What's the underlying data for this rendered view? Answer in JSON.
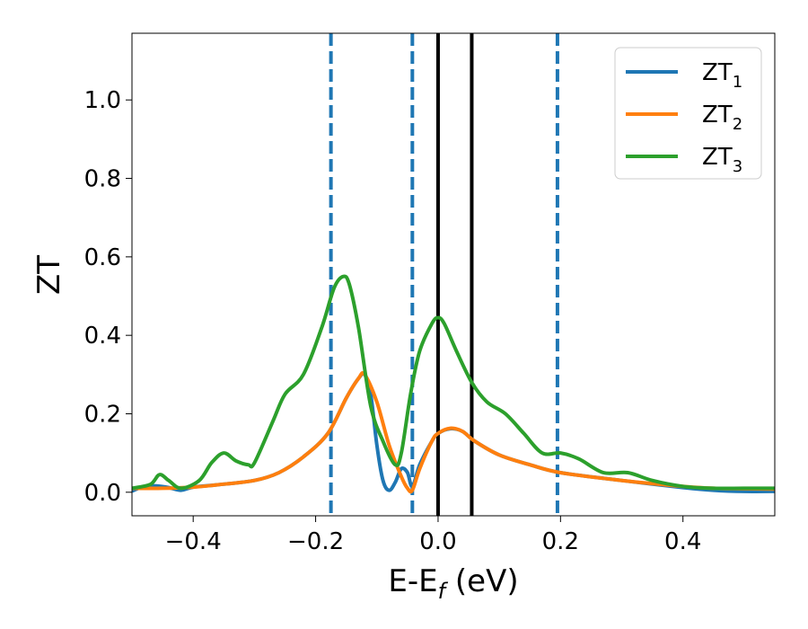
{
  "chart_data": {
    "type": "line",
    "xlabel_main": "E-E",
    "xlabel_sub": "f",
    "xlabel_unit": " (eV)",
    "ylabel": "ZT",
    "xlim": [
      -0.5,
      0.55
    ],
    "ylim": [
      -0.06,
      1.17
    ],
    "xticks": [
      -0.4,
      -0.2,
      0.0,
      0.2,
      0.4
    ],
    "xtick_labels": [
      "−0.4",
      "−0.2",
      "0.0",
      "0.2",
      "0.4"
    ],
    "yticks": [
      0.0,
      0.2,
      0.4,
      0.6,
      0.8,
      1.0
    ],
    "ytick_labels": [
      "0.0",
      "0.2",
      "0.4",
      "0.6",
      "0.8",
      "1.0"
    ],
    "grid": false,
    "legend_position": "top-right",
    "vlines_dashed": [
      -0.175,
      -0.042,
      0.195
    ],
    "vlines_solid": [
      0.0,
      0.055
    ],
    "series": [
      {
        "name": "ZT",
        "name_sub": "1",
        "color": "#1f77b4",
        "x": [
          -0.5,
          -0.48,
          -0.46,
          -0.44,
          -0.42,
          -0.4,
          -0.36,
          -0.3,
          -0.26,
          -0.22,
          -0.18,
          -0.15,
          -0.13,
          -0.12,
          -0.11,
          -0.1,
          -0.09,
          -0.08,
          -0.07,
          -0.06,
          -0.05,
          -0.042,
          -0.03,
          -0.01,
          0.0,
          0.02,
          0.04,
          0.06,
          0.1,
          0.15,
          0.2,
          0.3,
          0.4,
          0.45,
          0.5,
          0.55
        ],
        "y": [
          0.003,
          0.015,
          0.016,
          0.012,
          0.005,
          0.013,
          0.019,
          0.03,
          0.05,
          0.09,
          0.15,
          0.24,
          0.29,
          0.3,
          0.25,
          0.12,
          0.03,
          0.005,
          0.025,
          0.06,
          0.05,
          0.015,
          0.07,
          0.13,
          0.15,
          0.162,
          0.155,
          0.13,
          0.095,
          0.07,
          0.05,
          0.03,
          0.012,
          0.005,
          0.002,
          0.002
        ]
      },
      {
        "name": "ZT",
        "name_sub": "2",
        "color": "#ff7f0e",
        "x": [
          -0.5,
          -0.45,
          -0.4,
          -0.36,
          -0.3,
          -0.26,
          -0.22,
          -0.18,
          -0.15,
          -0.13,
          -0.12,
          -0.1,
          -0.08,
          -0.06,
          -0.05,
          -0.042,
          -0.03,
          -0.01,
          0.0,
          0.02,
          0.04,
          0.06,
          0.1,
          0.15,
          0.2,
          0.3,
          0.4,
          0.45,
          0.5,
          0.55
        ],
        "y": [
          0.01,
          0.01,
          0.013,
          0.019,
          0.03,
          0.05,
          0.09,
          0.15,
          0.24,
          0.29,
          0.3,
          0.23,
          0.12,
          0.04,
          0.01,
          0.005,
          0.06,
          0.13,
          0.15,
          0.163,
          0.155,
          0.13,
          0.095,
          0.07,
          0.05,
          0.03,
          0.015,
          0.01,
          0.009,
          0.008
        ]
      },
      {
        "name": "ZT",
        "name_sub": "3",
        "color": "#2ca02c",
        "x": [
          -0.5,
          -0.47,
          -0.455,
          -0.44,
          -0.42,
          -0.39,
          -0.37,
          -0.35,
          -0.33,
          -0.31,
          -0.3,
          -0.27,
          -0.25,
          -0.22,
          -0.19,
          -0.17,
          -0.155,
          -0.145,
          -0.13,
          -0.11,
          -0.09,
          -0.07,
          -0.06,
          -0.045,
          -0.03,
          -0.01,
          0.0,
          0.01,
          0.03,
          0.055,
          0.08,
          0.11,
          0.14,
          0.17,
          0.2,
          0.23,
          0.27,
          0.31,
          0.35,
          0.4,
          0.45,
          0.5,
          0.55
        ],
        "y": [
          0.01,
          0.02,
          0.045,
          0.03,
          0.01,
          0.03,
          0.075,
          0.1,
          0.08,
          0.07,
          0.075,
          0.18,
          0.25,
          0.3,
          0.42,
          0.52,
          0.55,
          0.53,
          0.42,
          0.22,
          0.13,
          0.07,
          0.1,
          0.25,
          0.36,
          0.43,
          0.445,
          0.43,
          0.36,
          0.28,
          0.23,
          0.2,
          0.15,
          0.1,
          0.1,
          0.085,
          0.05,
          0.05,
          0.03,
          0.015,
          0.01,
          0.01,
          0.01
        ]
      }
    ]
  }
}
